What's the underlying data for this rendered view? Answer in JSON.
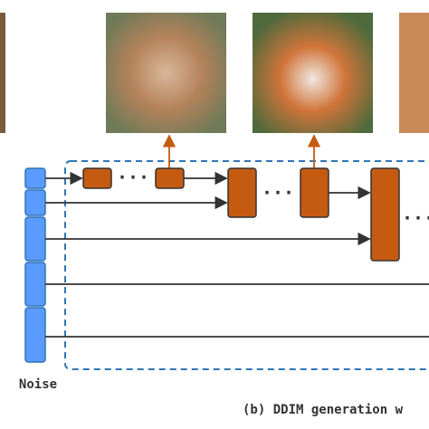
{
  "labels": {
    "noise": "Noise",
    "caption": "(b) DDIM generation w",
    "ellipsis": "···"
  }
}
